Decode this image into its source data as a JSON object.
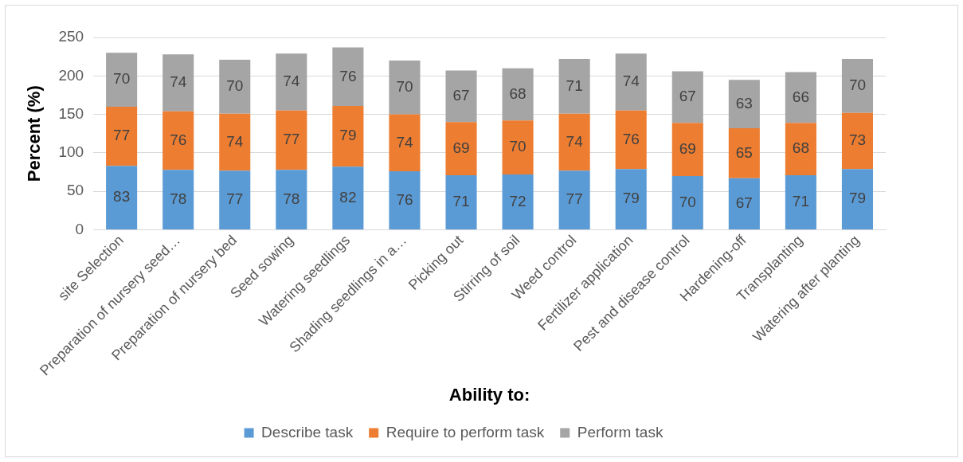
{
  "chart_data": {
    "type": "bar",
    "stacked": true,
    "xlabel": "Ability to:",
    "ylabel": "Percent (%)",
    "categories": [
      "site Selection",
      "Preparation of nursery seed…",
      "Preparation of nursery bed",
      "Seed sowing",
      "Watering seedlings",
      "Shading seedlings in a…",
      "Picking out",
      "Stirring of soil",
      "Weed control",
      "Fertilizer application",
      "Pest and disease control",
      "Hardening-off",
      "Transplanting",
      "Watering after planting"
    ],
    "series": [
      {
        "name": "Describe task",
        "color": "#5b9bd5",
        "values": [
          83,
          78,
          77,
          78,
          82,
          76,
          71,
          72,
          77,
          79,
          70,
          67,
          71,
          79
        ]
      },
      {
        "name": "Require to perform task",
        "color": "#ed7d31",
        "values": [
          77,
          76,
          74,
          77,
          79,
          74,
          69,
          70,
          74,
          76,
          69,
          65,
          68,
          73
        ]
      },
      {
        "name": "Perform task",
        "color": "#a5a5a5",
        "values": [
          70,
          74,
          70,
          74,
          76,
          70,
          67,
          68,
          71,
          74,
          67,
          63,
          66,
          70
        ]
      }
    ],
    "ylim": [
      0,
      250
    ],
    "yticks": [
      0,
      50,
      100,
      150,
      200,
      250
    ],
    "grid": "y",
    "legend": "bottom",
    "data_labels": true
  }
}
